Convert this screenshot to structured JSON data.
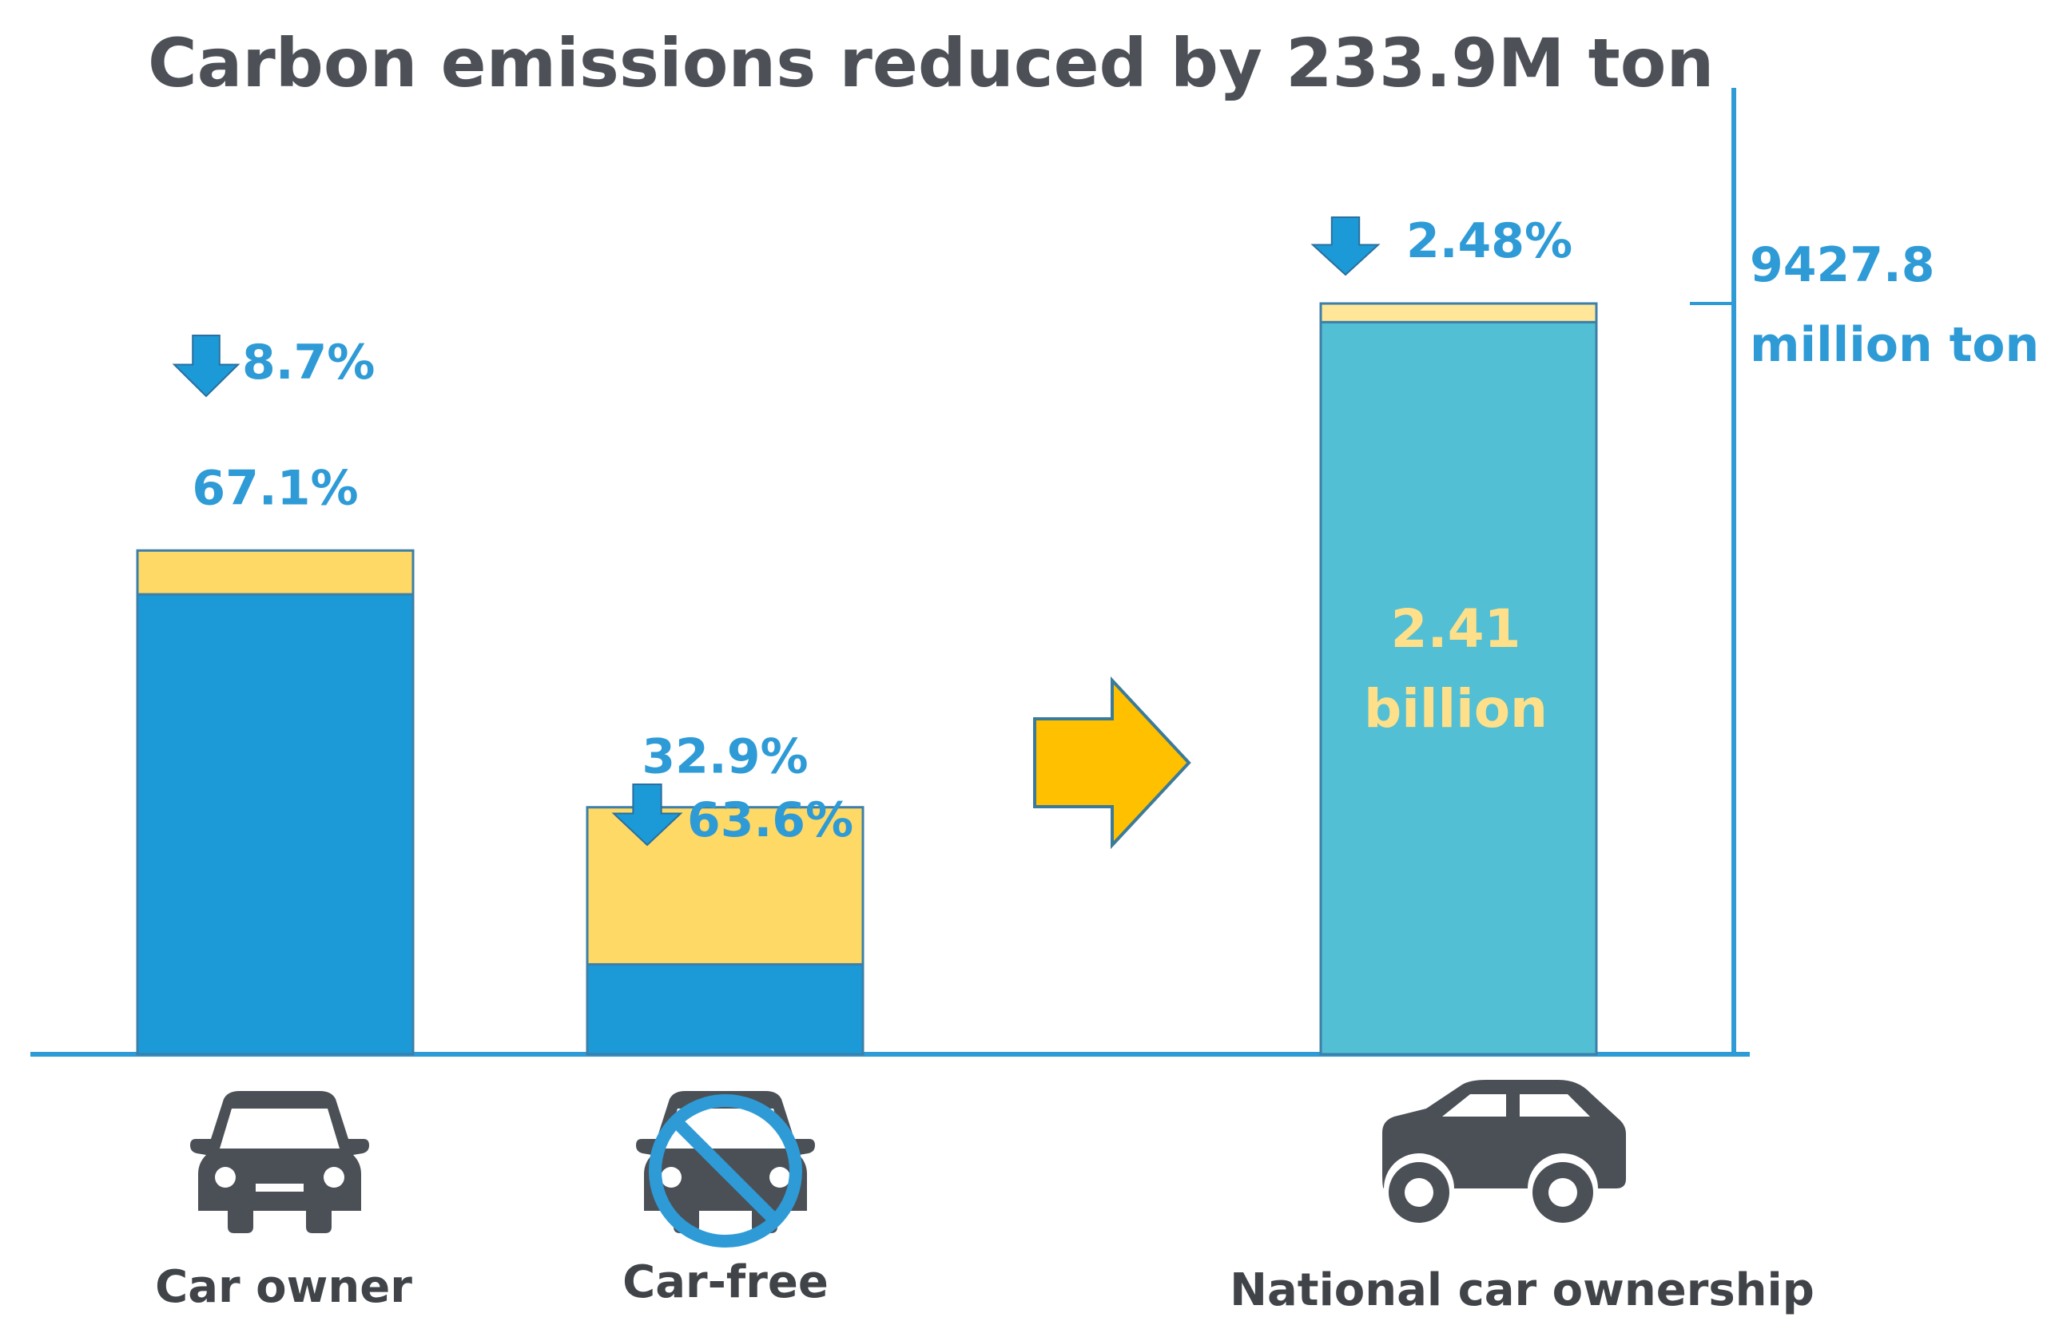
{
  "chart_data": {
    "type": "bar",
    "stacked": true,
    "title": "Carbon emissions reduced by 233.9M ton",
    "categories": [
      "Car owner",
      "Car-free",
      "National car ownership"
    ],
    "bars": [
      {
        "category": "Car owner",
        "share_label": "67.1%",
        "share": 67.1,
        "reduction_label": "8.7%",
        "reduction": 8.7
      },
      {
        "category": "Car-free",
        "share_label": "32.9%",
        "share": 32.9,
        "reduction_label": "63.6%",
        "reduction": 63.6
      },
      {
        "category": "National car ownership",
        "share": 100,
        "reduction_label": "2.48%",
        "reduction": 2.48,
        "value_line1": "2.41",
        "value_line2": "billion"
      }
    ],
    "axis_value_line1": "9427.8",
    "axis_value_line2": "million ton",
    "colors": {
      "bar_blue": "#1b9ad7",
      "bar_teal": "#52bfd5",
      "reduction_yellow": "#ffd966",
      "reduction_light": "#ffe699",
      "axis": "#2e9bd6",
      "arrow_fill": "#ffc000",
      "arrow_stroke": "#3b7a99",
      "icon": "#4b5057",
      "no_sign": "#2e9bd6"
    },
    "icons": [
      "car-front-icon",
      "no-car-icon",
      "car-side-icon",
      "right-arrow-icon",
      "down-arrow-icon"
    ]
  }
}
